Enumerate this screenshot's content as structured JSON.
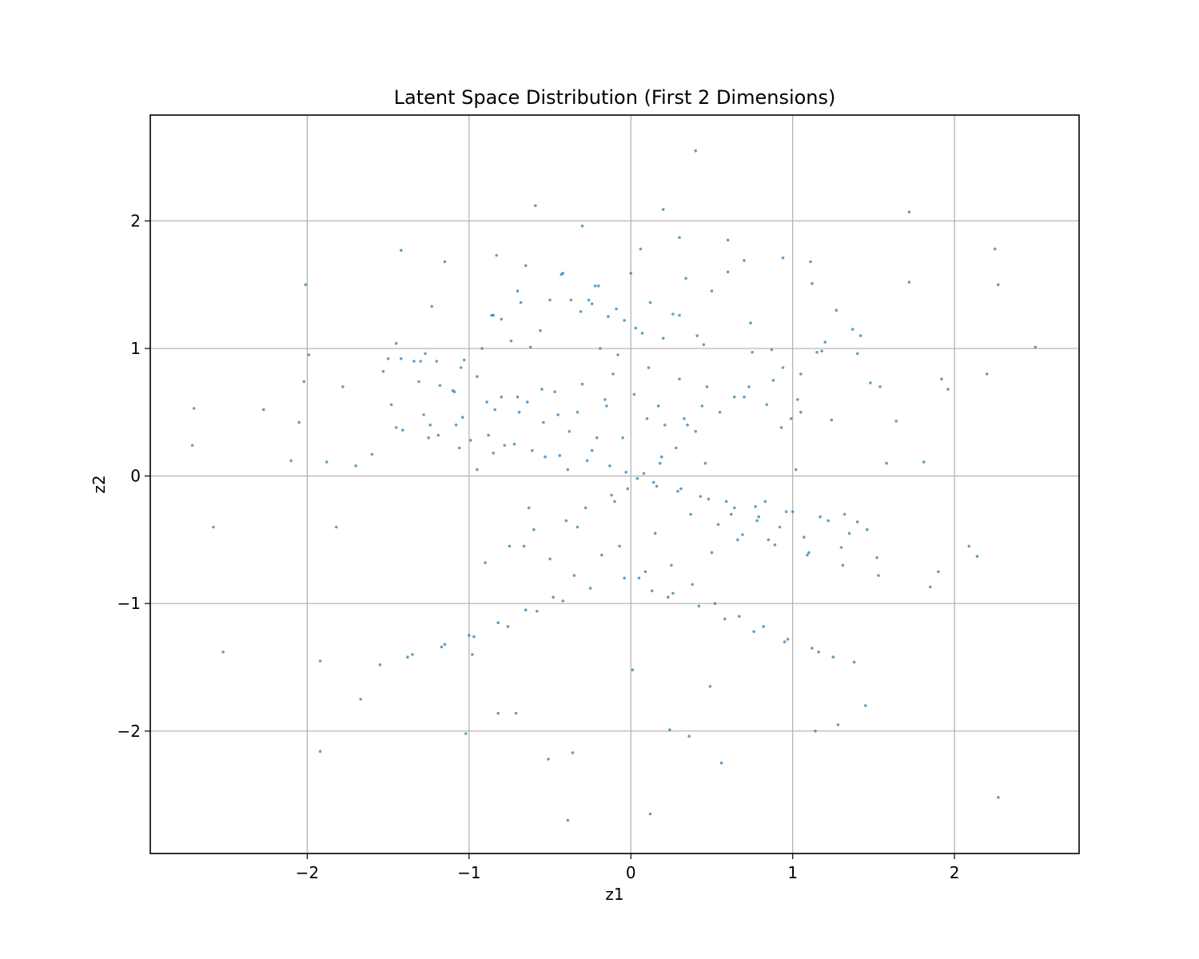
{
  "chart_data": {
    "type": "scatter",
    "title": "Latent Space Distribution (First 2 Dimensions)",
    "xlabel": "z1",
    "ylabel": "z2",
    "xlim": [
      -2.97,
      2.77
    ],
    "ylim": [
      -2.96,
      2.83
    ],
    "xticks": [
      -2,
      -1,
      0,
      1,
      2
    ],
    "yticks": [
      -2,
      -1,
      0,
      1,
      2
    ],
    "tick_labels": {
      "x": [
        "−2",
        "−1",
        "0",
        "1",
        "2"
      ],
      "y": [
        "−2",
        "−1",
        "0",
        "1",
        "2"
      ]
    },
    "grid": true,
    "legend": "none",
    "marker_color": "#1f77b4",
    "marker_opacity": 0.7,
    "series": [
      {
        "x": [
          0.4,
          2.25,
          2.27,
          1.72,
          -0.59,
          -0.3,
          0.2,
          0.3,
          -2.01,
          -1.42,
          0.6,
          0.06,
          -1.15,
          -0.83,
          2.5,
          1.72,
          0.7,
          0.94,
          1.11,
          1.12,
          -0.65,
          -0.42,
          0.0,
          -0.22,
          -1.23,
          -0.7,
          -0.24,
          -0.85,
          -1.99,
          -2.02,
          -2.7,
          -2.27,
          -2.05,
          -2.1,
          -1.88,
          -1.78,
          -2.71,
          -2.58,
          -2.52,
          -1.92,
          -1.92,
          -1.67,
          -1.02,
          -0.98,
          -0.71,
          -0.82,
          -0.51,
          -0.36,
          0.12,
          -0.39,
          0.56,
          0.24,
          0.36,
          0.49,
          1.14,
          1.28,
          1.45,
          2.27,
          2.09,
          2.14,
          1.9,
          1.85,
          2.2,
          1.96,
          1.92,
          1.81,
          1.64,
          1.54,
          1.48,
          1.37,
          1.4,
          1.27,
          1.05,
          0.99,
          1.2,
          1.15,
          1.03,
          0.93,
          0.87,
          0.75,
          0.74,
          0.6,
          0.5,
          0.45,
          0.41,
          0.34,
          0.3,
          0.26,
          0.2,
          0.12,
          0.03,
          -0.04,
          -0.09,
          -0.14,
          -0.2,
          -0.26,
          -0.31,
          -0.37,
          -0.43,
          -0.5,
          -0.56,
          -0.62,
          -0.68,
          -0.74,
          -0.8,
          -0.86,
          -0.92,
          -1.03,
          -1.1,
          -1.18,
          -1.27,
          -1.34,
          -1.42,
          -1.5,
          -1.6,
          -1.7,
          -1.82,
          -0.95,
          -0.63,
          -0.33,
          -0.05,
          0.19,
          0.46,
          0.78,
          1.02,
          1.35,
          1.58,
          0.1,
          -0.15,
          0.35,
          -0.55,
          0.62,
          -0.8,
          0.85,
          -1.05,
          1.1,
          -1.3,
          1.32,
          -0.02,
          0.08,
          -0.12,
          0.18,
          -0.28,
          0.28,
          -0.4,
          0.4,
          -0.6,
          0.55,
          -0.75,
          0.7,
          -0.9,
          0.88,
          0.05,
          -0.07,
          0.15,
          -0.18,
          0.25,
          -0.35,
          0.38,
          -0.48,
          0.52,
          -0.65,
          0.67,
          -0.82,
          0.82,
          -1.0,
          0.97,
          -1.15,
          1.12,
          -1.35,
          1.25,
          -1.55,
          0.01,
          -0.21,
          0.21,
          -0.45,
          0.44,
          -0.7,
          0.73,
          -0.95,
          0.94,
          -1.2,
          1.18,
          -1.45,
          1.42,
          0.07,
          -0.1,
          0.14,
          -0.24,
          0.31,
          -0.39,
          0.48,
          -0.53,
          0.64,
          -0.72,
          0.79,
          -0.88,
          0.92,
          -1.08,
          1.07,
          -1.28,
          1.3,
          -1.48,
          1.52,
          0.02,
          -0.16,
          0.17,
          -0.33,
          0.33,
          -0.5,
          0.5,
          -0.66,
          0.66,
          -0.85,
          0.83,
          -1.06,
          1.0,
          -1.25,
          1.22,
          -1.45,
          1.46,
          -0.04,
          0.09,
          -0.25,
          0.26,
          -0.42,
          0.42,
          -0.58,
          0.58,
          -0.76,
          0.76,
          -0.97,
          0.95,
          -1.17,
          1.16,
          -1.38,
          1.38,
          -0.11,
          0.11,
          -0.3,
          0.3,
          -0.47,
          0.47,
          -0.64,
          0.64,
          -0.84,
          0.84,
          -1.04,
          1.05,
          -1.24,
          1.24,
          -0.08,
          0.13,
          -0.19,
          0.23,
          -0.38,
          0.37,
          -0.54,
          0.54,
          -0.69,
          0.69,
          -0.89,
          0.89,
          -1.09,
          1.09,
          -1.31,
          1.31,
          -1.53,
          1.53,
          0.04,
          -0.03,
          0.16,
          -0.13,
          0.29,
          -0.27,
          0.43,
          -0.44,
          0.59,
          -0.61,
          0.77,
          -0.78,
          0.96,
          -0.99,
          1.17,
          -1.19,
          1.4,
          -1.41
        ],
        "y": [
          2.55,
          1.78,
          1.5,
          2.07,
          2.12,
          1.96,
          2.09,
          1.87,
          1.5,
          1.77,
          1.85,
          1.78,
          1.68,
          1.73,
          1.01,
          1.52,
          1.69,
          1.71,
          1.68,
          1.51,
          1.65,
          1.59,
          1.59,
          1.49,
          1.33,
          1.45,
          1.35,
          1.26,
          0.95,
          0.74,
          0.53,
          0.52,
          0.42,
          0.12,
          0.11,
          0.7,
          0.24,
          -0.4,
          -1.38,
          -1.45,
          -2.16,
          -1.75,
          -2.02,
          -1.4,
          -1.86,
          -1.86,
          -2.22,
          -2.17,
          -2.65,
          -2.7,
          -2.25,
          -1.99,
          -2.04,
          -1.65,
          -2.0,
          -1.95,
          -1.8,
          -2.52,
          -0.55,
          -0.63,
          -0.75,
          -0.87,
          0.8,
          0.68,
          0.76,
          0.11,
          0.43,
          0.7,
          0.73,
          1.15,
          0.96,
          1.3,
          0.8,
          0.45,
          1.05,
          0.97,
          0.6,
          0.38,
          0.99,
          0.97,
          1.2,
          1.6,
          1.45,
          1.03,
          1.1,
          1.55,
          1.26,
          1.27,
          1.08,
          1.36,
          1.16,
          1.22,
          1.31,
          1.25,
          1.49,
          1.38,
          1.29,
          1.38,
          1.58,
          1.38,
          1.14,
          1.01,
          1.36,
          1.06,
          1.23,
          1.26,
          1.0,
          0.91,
          0.67,
          0.71,
          0.96,
          0.9,
          0.92,
          0.92,
          0.17,
          0.08,
          -0.4,
          0.05,
          -0.25,
          -0.4,
          0.3,
          0.15,
          0.1,
          -0.35,
          0.05,
          -0.45,
          0.1,
          0.45,
          0.55,
          0.4,
          0.68,
          -0.3,
          0.62,
          -0.5,
          0.85,
          -0.6,
          0.9,
          -0.3,
          -0.1,
          0.02,
          -0.15,
          0.1,
          -0.25,
          0.22,
          -0.35,
          0.35,
          -0.42,
          0.5,
          -0.55,
          0.62,
          -0.68,
          0.75,
          -0.8,
          -0.55,
          -0.45,
          -0.62,
          -0.7,
          -0.78,
          -0.85,
          -0.95,
          -1.0,
          -1.05,
          -1.1,
          -1.15,
          -1.18,
          -1.25,
          -1.28,
          -1.32,
          -1.35,
          -1.4,
          -1.42,
          -1.48,
          -1.52,
          0.3,
          0.4,
          0.48,
          0.55,
          0.62,
          0.7,
          0.78,
          0.85,
          0.9,
          0.98,
          1.04,
          1.1,
          1.12,
          -0.2,
          -0.05,
          0.2,
          -0.1,
          0.05,
          -0.18,
          0.15,
          -0.25,
          0.25,
          -0.32,
          0.32,
          -0.4,
          0.4,
          -0.48,
          0.48,
          -0.56,
          0.56,
          -0.64,
          0.64,
          0.6,
          0.55,
          0.5,
          0.45,
          -0.65,
          -0.6,
          -0.55,
          -0.5,
          0.18,
          -0.2,
          0.22,
          -0.28,
          0.3,
          -0.35,
          0.38,
          -0.42,
          -0.8,
          -0.75,
          -0.88,
          -0.92,
          -0.98,
          -1.02,
          -1.06,
          -1.12,
          -1.18,
          -1.22,
          -1.26,
          -1.3,
          -1.34,
          -1.38,
          -1.42,
          -1.46,
          0.8,
          0.85,
          0.72,
          0.76,
          0.66,
          0.7,
          0.58,
          0.62,
          0.52,
          0.56,
          0.46,
          0.5,
          0.4,
          0.44,
          0.95,
          -0.9,
          1.0,
          -0.95,
          0.35,
          -0.3,
          0.42,
          -0.38,
          0.5,
          -0.46,
          0.58,
          -0.54,
          0.66,
          -0.62,
          0.74,
          -0.7,
          0.82,
          -0.78,
          -0.02,
          0.03,
          -0.08,
          0.08,
          -0.12,
          0.12,
          -0.16,
          0.16,
          -0.2,
          0.2,
          -0.24,
          0.24,
          -0.28,
          0.28,
          -0.32,
          0.32,
          -0.36,
          0.36
        ]
      }
    ]
  }
}
